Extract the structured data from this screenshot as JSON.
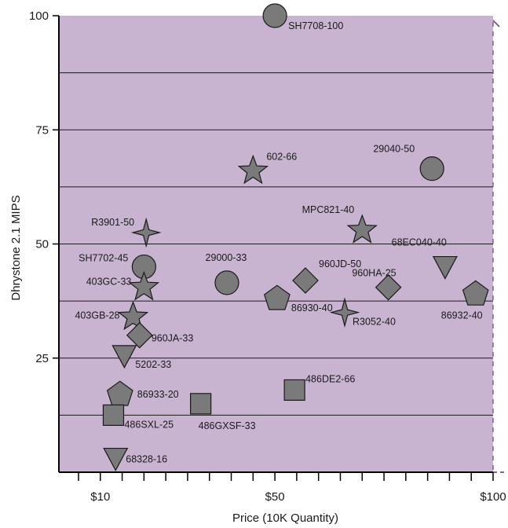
{
  "chart_data": {
    "type": "scatter",
    "title": "",
    "xlabel": "Price (10K Quantity)",
    "ylabel": "Dhrystone 2.1 MIPS",
    "xlim": [
      0.5,
      100
    ],
    "ylim": [
      0,
      100
    ],
    "x_ticks": [
      {
        "value": 10,
        "label": "$10"
      },
      {
        "value": 50,
        "label": "$50"
      },
      {
        "value": 100,
        "label": "$100"
      }
    ],
    "y_ticks": [
      {
        "value": 25,
        "label": "25"
      },
      {
        "value": 50,
        "label": "50"
      },
      {
        "value": 75,
        "label": "75"
      },
      {
        "value": 100,
        "label": "100"
      }
    ],
    "x_minor_ticks": [
      5,
      15,
      20,
      25,
      30,
      35,
      40,
      45,
      55,
      60,
      65,
      70,
      75,
      80,
      85,
      90,
      95
    ],
    "y_gridlines": [
      12.5,
      25,
      37.5,
      50,
      62.5,
      75,
      87.5
    ],
    "grid": true,
    "plot_background": "#c8b4d0",
    "marker_color": "#7a7a7a",
    "points": [
      {
        "label": "SH7708-100",
        "x": 50,
        "y": 100,
        "marker": "circle"
      },
      {
        "label": "602-66",
        "x": 45,
        "y": 66,
        "marker": "star5"
      },
      {
        "label": "29040-50",
        "x": 86,
        "y": 66.5,
        "marker": "circle"
      },
      {
        "label": "R3901-50",
        "x": 20.5,
        "y": 52.5,
        "marker": "star4"
      },
      {
        "label": "MPC821-40",
        "x": 70,
        "y": 53,
        "marker": "star5"
      },
      {
        "label": "SH7702-45",
        "x": 20,
        "y": 45,
        "marker": "circle"
      },
      {
        "label": "68EC040-40",
        "x": 89,
        "y": 45,
        "marker": "triangle-down"
      },
      {
        "label": "403GC-33",
        "x": 20,
        "y": 40.5,
        "marker": "star5"
      },
      {
        "label": "29000-33",
        "x": 39,
        "y": 41.5,
        "marker": "circle"
      },
      {
        "label": "960JD-50",
        "x": 57,
        "y": 42,
        "marker": "diamond"
      },
      {
        "label": "960HA-25",
        "x": 76,
        "y": 40.5,
        "marker": "diamond"
      },
      {
        "label": "86930-40",
        "x": 50.5,
        "y": 38,
        "marker": "pentagon"
      },
      {
        "label": "86932-40",
        "x": 96,
        "y": 39,
        "marker": "pentagon"
      },
      {
        "label": "403GB-28",
        "x": 17.5,
        "y": 34,
        "marker": "star5"
      },
      {
        "label": "R3052-40",
        "x": 66,
        "y": 35,
        "marker": "star4"
      },
      {
        "label": "960JA-33",
        "x": 19,
        "y": 30,
        "marker": "diamond"
      },
      {
        "label": "5202-33",
        "x": 15.5,
        "y": 25.5,
        "marker": "triangle-down"
      },
      {
        "label": "486DE2-66",
        "x": 54.5,
        "y": 18,
        "marker": "square"
      },
      {
        "label": "86933-20",
        "x": 14.5,
        "y": 17,
        "marker": "pentagon"
      },
      {
        "label": "486SXL-25",
        "x": 13,
        "y": 12.5,
        "marker": "square"
      },
      {
        "label": "486GXSF-33",
        "x": 33,
        "y": 15,
        "marker": "square"
      },
      {
        "label": "68328-16",
        "x": 13.5,
        "y": 3,
        "marker": "triangle-down"
      }
    ]
  }
}
